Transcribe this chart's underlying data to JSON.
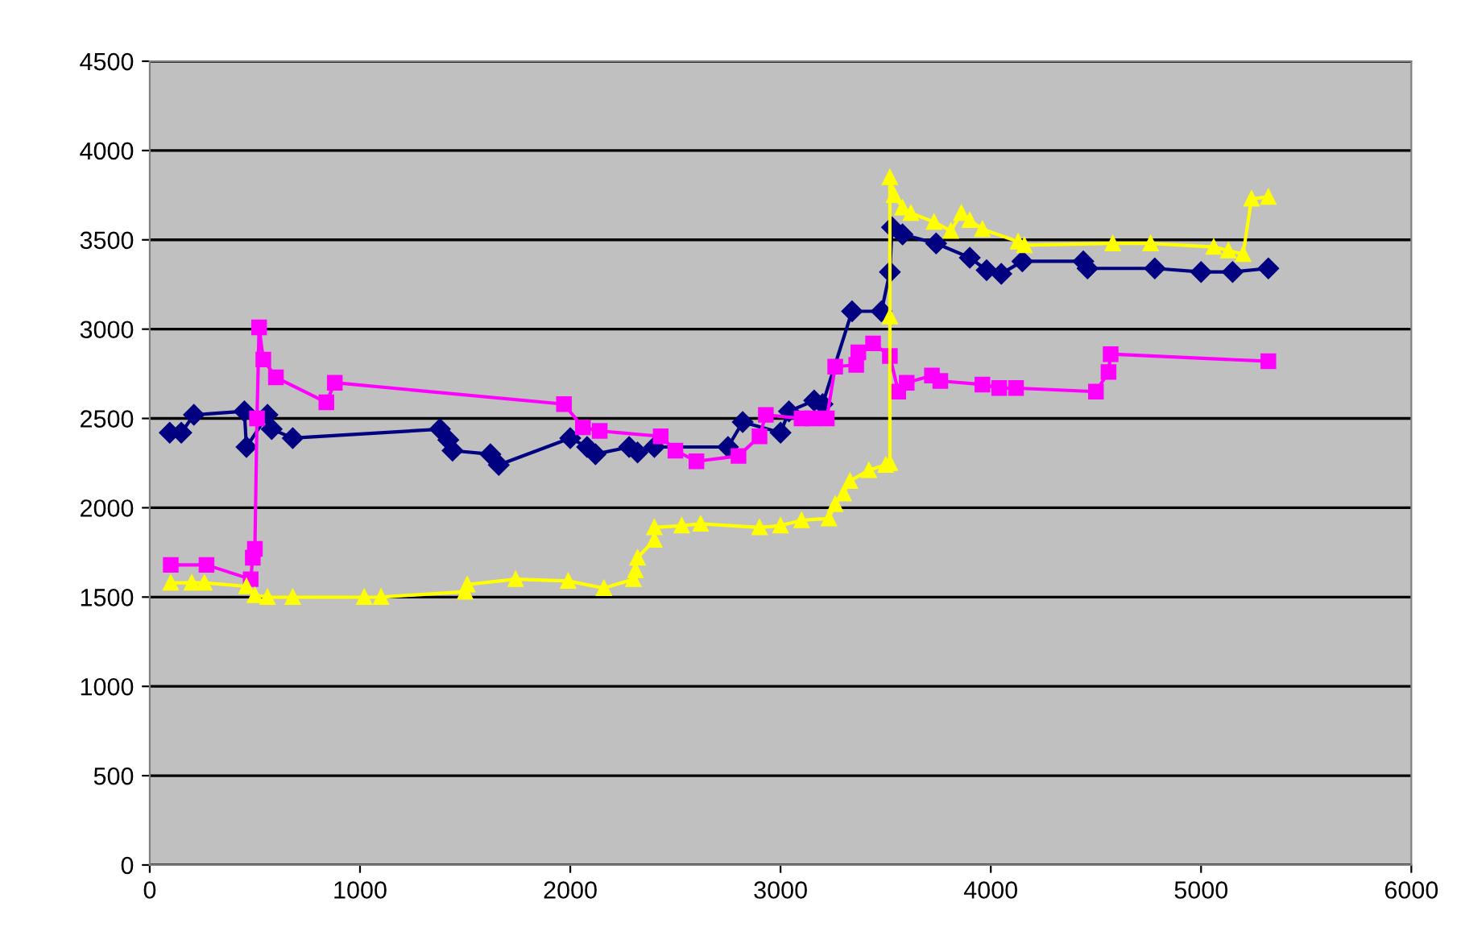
{
  "chart_data": {
    "type": "line",
    "xlim": [
      0,
      6000
    ],
    "xticks": [
      0,
      1000,
      2000,
      3000,
      4000,
      5000,
      6000
    ],
    "ylim": [
      0,
      4500
    ],
    "yticks": [
      0,
      500,
      1000,
      1500,
      2000,
      2500,
      3000,
      3500,
      4000,
      4500
    ],
    "grid": "y",
    "line_style": "solid",
    "series": [
      {
        "color": "#000080",
        "marker": "diamond",
        "x": [
          95,
          150,
          210,
          450,
          460,
          560,
          580,
          680,
          1380,
          1420,
          1440,
          1620,
          1660,
          2000,
          2080,
          2120,
          2280,
          2320,
          2400,
          2750,
          2820,
          3000,
          3040,
          3160,
          3200,
          3340,
          3480,
          3520,
          3530,
          3580,
          3740,
          3900,
          3980,
          4050,
          4150,
          4440,
          4460,
          4780,
          5000,
          5150,
          5320
        ],
        "values": [
          2420,
          2420,
          2520,
          2540,
          2340,
          2520,
          2440,
          2390,
          2440,
          2380,
          2320,
          2300,
          2240,
          2390,
          2340,
          2300,
          2340,
          2310,
          2340,
          2340,
          2480,
          2420,
          2540,
          2600,
          2580,
          3100,
          3100,
          3320,
          3570,
          3530,
          3480,
          3400,
          3330,
          3310,
          3380,
          3380,
          3340,
          3340,
          3320,
          3320,
          3340
        ]
      },
      {
        "color": "#ff00ff",
        "marker": "square",
        "x": [
          100,
          270,
          480,
          490,
          500,
          510,
          520,
          540,
          600,
          840,
          880,
          1970,
          2060,
          2140,
          2430,
          2500,
          2600,
          2800,
          2900,
          2930,
          3100,
          3150,
          3220,
          3260,
          3360,
          3370,
          3440,
          3520,
          3560,
          3600,
          3720,
          3760,
          3960,
          4040,
          4120,
          4500,
          4560,
          4570,
          5320
        ],
        "values": [
          1680,
          1680,
          1600,
          1720,
          1770,
          2500,
          3010,
          2830,
          2730,
          2590,
          2700,
          2580,
          2450,
          2430,
          2400,
          2320,
          2260,
          2290,
          2400,
          2520,
          2500,
          2500,
          2500,
          2790,
          2800,
          2870,
          2920,
          2850,
          2650,
          2700,
          2740,
          2710,
          2690,
          2670,
          2670,
          2650,
          2760,
          2860,
          2820
        ]
      },
      {
        "color": "#ffff00",
        "marker": "triangle",
        "x": [
          100,
          200,
          260,
          460,
          500,
          560,
          680,
          1020,
          1100,
          1500,
          1510,
          1740,
          1990,
          2160,
          2300,
          2310,
          2320,
          2400,
          2400,
          2530,
          2620,
          2900,
          3000,
          3100,
          3230,
          3260,
          3300,
          3330,
          3420,
          3500,
          3520,
          3520,
          3520,
          3540,
          3580,
          3620,
          3730,
          3810,
          3860,
          3900,
          3960,
          4130,
          4160,
          4580,
          4760,
          5060,
          5130,
          5200,
          5240,
          5320
        ],
        "values": [
          1580,
          1580,
          1580,
          1560,
          1510,
          1500,
          1500,
          1500,
          1500,
          1530,
          1570,
          1600,
          1590,
          1550,
          1600,
          1650,
          1720,
          1820,
          1890,
          1900,
          1910,
          1890,
          1900,
          1930,
          1940,
          2020,
          2080,
          2150,
          2210,
          2240,
          2250,
          3070,
          3850,
          3750,
          3680,
          3650,
          3600,
          3550,
          3650,
          3610,
          3560,
          3490,
          3470,
          3480,
          3480,
          3460,
          3440,
          3420,
          3730,
          3740
        ]
      }
    ]
  }
}
